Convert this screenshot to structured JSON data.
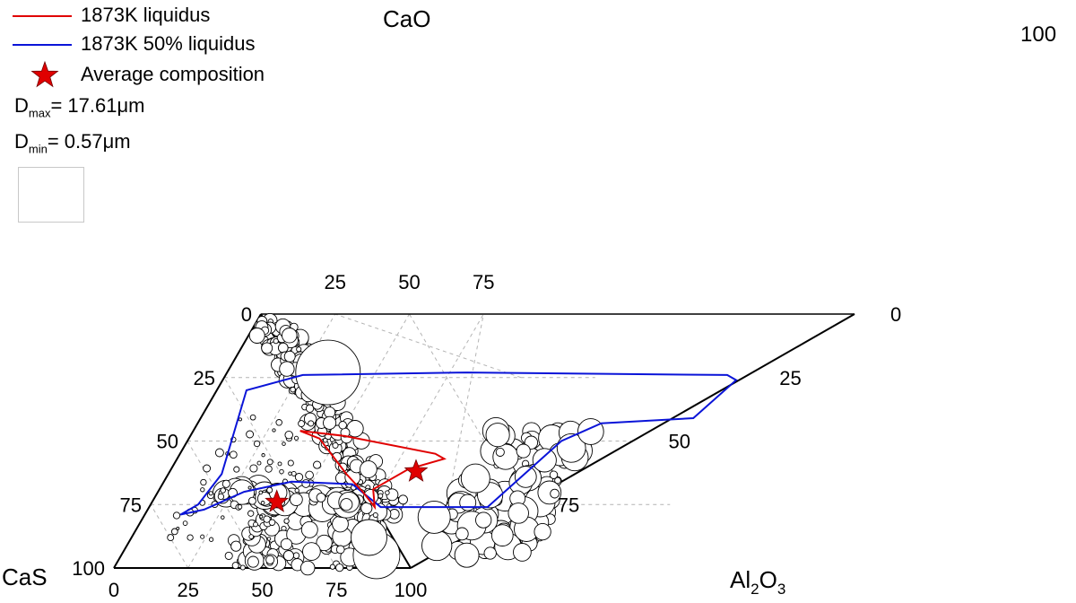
{
  "legend": {
    "liquidus_label": "1873K liquidus",
    "half_liquidus_label": "1873K 50% liquidus",
    "average_label": "Average composition",
    "dmax_prefix": "D",
    "dmax_sub": "max",
    "dmax_value": "= 17.61μm",
    "dmin_prefix": "D",
    "dmin_sub": "min",
    "dmin_value": "= 0.57μm"
  },
  "chart_data": {
    "type": "scatter",
    "subtype": "ternary-double-diagram",
    "vertex_labels": {
      "top": "CaO",
      "bottom_left": "CaS",
      "bottom_right": "Al2O3",
      "top_right": "100"
    },
    "ticks": {
      "left_axis": [
        "0",
        "25",
        "50",
        "75",
        "100"
      ],
      "bottom_axis": [
        "0",
        "25",
        "50",
        "75",
        "100"
      ],
      "top_axis": [
        "25",
        "50",
        "75"
      ],
      "right_axis": [
        "0",
        "25",
        "50",
        "75"
      ]
    },
    "grid": true,
    "grid_style": "dashed-grey",
    "colors": {
      "liquidus": "#e00000",
      "half_liquidus": "#0a14d8",
      "average_marker": "#e00000",
      "frame": "#000000",
      "grid": "#b4b4b4"
    },
    "series": [
      {
        "name": "1873K liquidus",
        "line": [
          [
            0.36,
            0.54
          ],
          [
            0.52,
            0.52
          ],
          [
            0.86,
            0.45
          ],
          [
            0.9,
            0.43
          ],
          [
            0.8,
            0.39
          ],
          [
            0.72,
            0.31
          ],
          [
            0.76,
            0.24
          ],
          [
            0.69,
            0.3
          ],
          [
            0.6,
            0.37
          ],
          [
            0.44,
            0.51
          ]
        ]
      },
      {
        "name": "1873K 50% liquidus",
        "line": [
          [
            0.12,
            0.21
          ],
          [
            0.19,
            0.23
          ],
          [
            0.29,
            0.3
          ],
          [
            0.43,
            0.34
          ],
          [
            0.64,
            0.33
          ],
          [
            0.78,
            0.24
          ],
          [
            1.02,
            0.24
          ],
          [
            1.14,
            0.24
          ],
          [
            1.26,
            0.5
          ],
          [
            1.36,
            0.57
          ],
          [
            1.66,
            0.59
          ],
          [
            1.73,
            0.74
          ],
          [
            1.69,
            0.76
          ],
          [
            0.81,
            0.77
          ],
          [
            0.26,
            0.76
          ],
          [
            0.1,
            0.7
          ],
          [
            0.18,
            0.37
          ],
          [
            0.16,
            0.25
          ]
        ]
      },
      {
        "name": "Average composition",
        "points": [
          [
            0.42,
            0.26
          ],
          [
            0.83,
            0.38
          ]
        ]
      }
    ]
  }
}
